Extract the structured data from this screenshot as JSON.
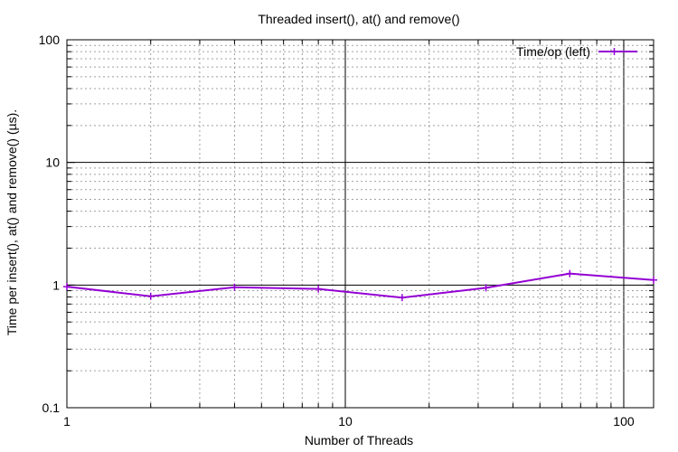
{
  "chart_data": {
    "type": "line",
    "title": "Threaded insert(), at() and remove()",
    "xlabel": "Number of Threads",
    "ylabel": "Time per insert(), at() and remove() (µs).",
    "x_scale": "log",
    "y_scale": "log",
    "xlim": [
      1,
      128
    ],
    "ylim": [
      0.1,
      100
    ],
    "x_ticks": [
      {
        "value": 1,
        "label": "1"
      },
      {
        "value": 10,
        "label": "10"
      },
      {
        "value": 100,
        "label": "100"
      }
    ],
    "y_ticks": [
      {
        "value": 100,
        "label": "100"
      },
      {
        "value": 10,
        "label": "10"
      },
      {
        "value": 1,
        "label": "1"
      },
      {
        "value": 0.1,
        "label": "0.1"
      }
    ],
    "grid": true,
    "legend_position": "top-right",
    "series": [
      {
        "name": "Time/op (left)",
        "color": "#9400d3",
        "x": [
          1,
          2,
          4,
          8,
          16,
          32,
          64,
          128
        ],
        "y": [
          0.97,
          0.81,
          0.96,
          0.93,
          0.79,
          0.95,
          1.24,
          1.1
        ]
      }
    ]
  }
}
